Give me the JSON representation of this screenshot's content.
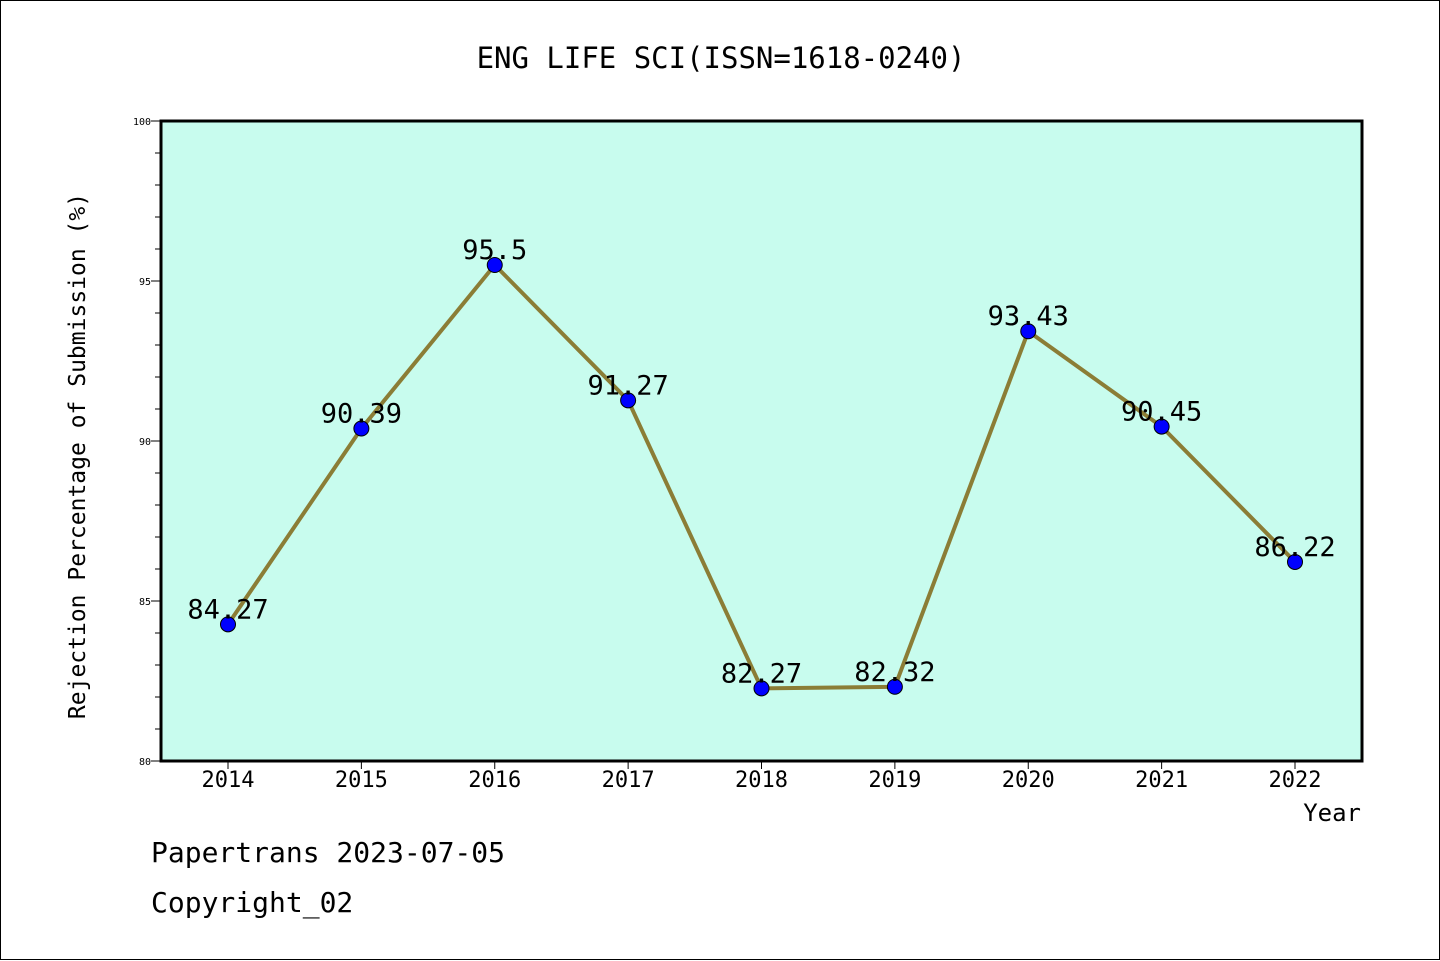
{
  "chart_data": {
    "type": "line",
    "title": "ENG LIFE SCI(ISSN=1618-0240)",
    "xlabel": "Year",
    "ylabel": "Rejection Percentage of Submission (%)",
    "categories": [
      "2014",
      "2015",
      "2016",
      "2017",
      "2018",
      "2019",
      "2020",
      "2021",
      "2022"
    ],
    "series": [
      {
        "values": [
          84.27,
          90.39,
          95.5,
          91.27,
          82.27,
          82.32,
          93.43,
          90.45,
          86.22
        ],
        "labels": [
          "84.27",
          "90.39",
          "95.5",
          "91.27",
          "82.27",
          "82.32",
          "93.43",
          "90.45",
          "86.22"
        ]
      }
    ],
    "ylim": [
      80,
      100
    ],
    "yticks": [
      "80",
      "85",
      "90",
      "95",
      "100"
    ],
    "grid": false,
    "colors": {
      "plot_background": "#c8fcee",
      "line": "#8b7d36",
      "marker": "#0000ff"
    }
  },
  "footer": {
    "line1": "Papertrans 2023-07-05",
    "line2": "Copyright_02"
  }
}
